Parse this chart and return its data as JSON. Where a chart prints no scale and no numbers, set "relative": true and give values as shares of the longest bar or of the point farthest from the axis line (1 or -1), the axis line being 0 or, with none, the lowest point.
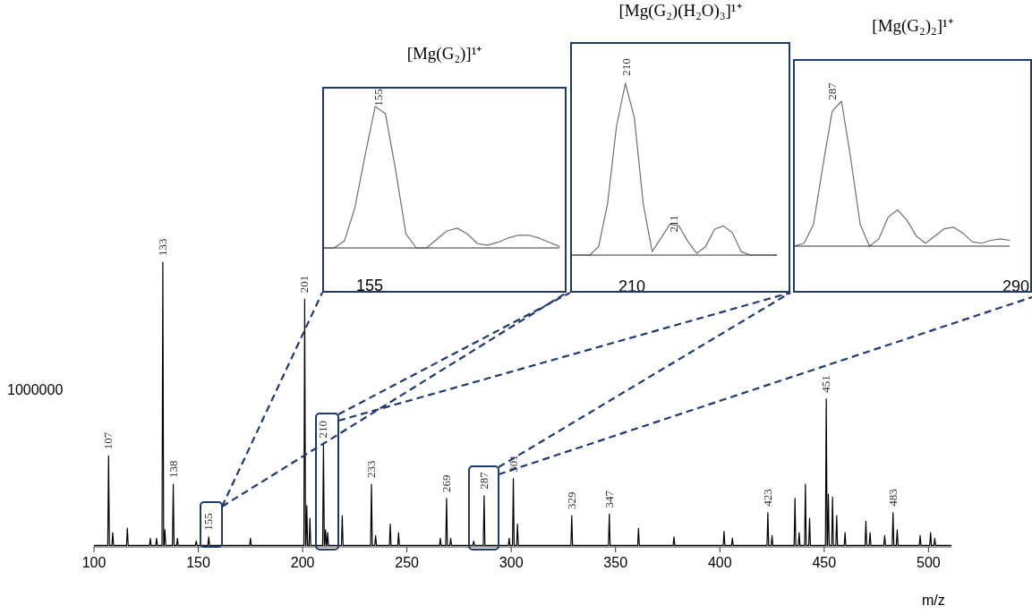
{
  "chart_data": [
    {
      "type": "line",
      "xlabel": "m/z",
      "relative": true,
      "xlim": [
        100,
        511
      ],
      "xticks": [
        100,
        150,
        200,
        250,
        300,
        350,
        400,
        450,
        500
      ],
      "x": [
        100,
        106.6,
        107,
        107.4,
        108.6,
        109,
        109.4,
        115.6,
        116,
        116.4,
        126.6,
        127,
        127.4,
        129.6,
        130,
        130.4,
        132.6,
        133,
        133.4,
        133.6,
        134,
        134.4,
        137.6,
        138,
        138.4,
        139.6,
        140,
        140.4,
        148.6,
        149,
        149.4,
        154.6,
        155,
        155.4,
        174.6,
        175,
        175.4,
        200.6,
        201,
        201.4,
        201.6,
        202,
        202.4,
        203.1,
        203.5,
        203.9,
        209.6,
        210,
        210.4,
        210.6,
        211,
        211.4,
        211.6,
        212,
        212.4,
        218.6,
        219,
        219.4,
        232.6,
        233,
        233.4,
        234.6,
        235,
        235.4,
        241.6,
        242,
        242.4,
        245.6,
        246,
        246.4,
        265.6,
        266,
        266.4,
        268.6,
        269,
        269.4,
        270.6,
        271,
        271.4,
        281.6,
        282,
        282.4,
        286.6,
        287,
        287.4,
        298.6,
        299,
        299.4,
        300.6,
        301,
        301.4,
        302.6,
        303,
        303.4,
        328.6,
        329,
        329.4,
        346.6,
        347,
        347.4,
        360.6,
        361,
        361.4,
        377.6,
        378,
        378.4,
        401.6,
        402,
        402.4,
        405.6,
        406,
        406.4,
        422.6,
        423,
        423.4,
        424.6,
        425,
        425.4,
        435.6,
        436,
        436.4,
        437.6,
        438,
        438.4,
        440.6,
        441,
        441.4,
        442.6,
        443,
        443.4,
        450.6,
        451,
        451.4,
        451.6,
        452,
        452.4,
        453.6,
        454,
        454.4,
        455.6,
        456,
        456.4,
        459.6,
        460,
        460.4,
        469.6,
        470,
        470.4,
        471.6,
        472,
        472.4,
        478.6,
        479,
        479.4,
        482.6,
        483,
        483.4,
        484.6,
        485,
        485.4,
        495.6,
        496,
        496.4,
        500.6,
        501,
        501.4,
        502.6,
        503,
        503.4,
        511
      ],
      "series": [
        {
          "color": "#000000",
          "values": [
            0.005,
            0.005,
            0.32,
            0.005,
            0.005,
            0.05,
            0.005,
            0.005,
            0.066,
            0.005,
            0.005,
            0.03,
            0.005,
            0.005,
            0.03,
            0.005,
            0.005,
            1,
            0.005,
            0.005,
            0.06,
            0.005,
            0.005,
            0.22,
            0.005,
            0.005,
            0.03,
            0.005,
            0.005,
            0.02,
            0.005,
            0.005,
            0.035,
            0.005,
            0.005,
            0.03,
            0.005,
            0.005,
            0.87,
            0.005,
            0.005,
            0.145,
            0.005,
            0.005,
            0.1,
            0.005,
            0.005,
            0.36,
            0.005,
            0.005,
            0.06,
            0.005,
            0.005,
            0.05,
            0.005,
            0.005,
            0.11,
            0.005,
            0.005,
            0.22,
            0.005,
            0.005,
            0.04,
            0.005,
            0.005,
            0.08,
            0.005,
            0.005,
            0.05,
            0.005,
            0.005,
            0.03,
            0.005,
            0.005,
            0.17,
            0.005,
            0.005,
            0.03,
            0.005,
            0.005,
            0.02,
            0.005,
            0.005,
            0.18,
            0.005,
            0.005,
            0.03,
            0.005,
            0.005,
            0.24,
            0.005,
            0.005,
            0.08,
            0.005,
            0.005,
            0.11,
            0.005,
            0.005,
            0.115,
            0.005,
            0.005,
            0.065,
            0.005,
            0.005,
            0.035,
            0.005,
            0.005,
            0.055,
            0.005,
            0.005,
            0.03,
            0.005,
            0.005,
            0.12,
            0.005,
            0.005,
            0.04,
            0.005,
            0.005,
            0.17,
            0.005,
            0.005,
            0.05,
            0.005,
            0.005,
            0.22,
            0.005,
            0.005,
            0.1,
            0.005,
            0.005,
            0.52,
            0.005,
            0.005,
            0.185,
            0.005,
            0.005,
            0.175,
            0.005,
            0.005,
            0.11,
            0.005,
            0.005,
            0.05,
            0.005,
            0.005,
            0.09,
            0.005,
            0.005,
            0.05,
            0.005,
            0.005,
            0.04,
            0.005,
            0.005,
            0.12,
            0.005,
            0.005,
            0.06,
            0.005,
            0.005,
            0.04,
            0.005,
            0.005,
            0.05,
            0.005,
            0.005,
            0.03,
            0.005,
            0.005
          ]
        }
      ],
      "annotations": [
        "1000000",
        {
          "text": "107",
          "x": 107,
          "y": 0.32
        },
        {
          "text": "133",
          "x": 133,
          "y": 1
        },
        {
          "text": "138",
          "x": 138,
          "y": 0.22
        },
        {
          "text": "155",
          "x": 155,
          "y": 0.035
        },
        {
          "text": "201",
          "x": 201,
          "y": 0.87
        },
        {
          "text": "210",
          "x": 210,
          "y": 0.36
        },
        {
          "text": "233",
          "x": 233,
          "y": 0.22
        },
        {
          "text": "269",
          "x": 269,
          "y": 0.17
        },
        {
          "text": "287",
          "x": 287,
          "y": 0.18
        },
        {
          "text": "301",
          "x": 301,
          "y": 0.24
        },
        {
          "text": "329",
          "x": 329,
          "y": 0.11
        },
        {
          "text": "347",
          "x": 347,
          "y": 0.115
        },
        {
          "text": "423",
          "x": 423,
          "y": 0.12
        },
        {
          "text": "451",
          "x": 451,
          "y": 0.52
        },
        {
          "text": "483",
          "x": 483,
          "y": 0.12
        }
      ]
    },
    {
      "type": "line",
      "title": "[Mg(G₂)]¹⁺",
      "relative": true,
      "categories": [
        null,
        null,
        null,
        null,
        null,
        null,
        null,
        null,
        null,
        null,
        null,
        null,
        null,
        null,
        null,
        null,
        null,
        null,
        null,
        null,
        null,
        null,
        null,
        null
      ],
      "series": [
        {
          "color": "#707070",
          "values": [
            0,
            0,
            0.05,
            0.28,
            0.65,
            1,
            0.95,
            0.55,
            0.1,
            0,
            0,
            0.06,
            0.12,
            0.14,
            0.1,
            0.03,
            0.02,
            0.04,
            0.07,
            0.09,
            0.09,
            0.07,
            0.04,
            0.01
          ]
        }
      ],
      "annotations": [
        "155",
        "155"
      ]
    },
    {
      "type": "line",
      "title": "[Mg(G₂)(H₂O)₃]¹⁺",
      "relative": true,
      "categories": [
        null,
        null,
        null,
        null,
        null,
        null,
        null,
        null,
        null,
        null,
        null,
        null,
        null,
        null,
        null,
        null,
        null,
        null,
        null,
        null,
        null,
        null,
        null,
        null
      ],
      "series": [
        {
          "color": "#707070",
          "values": [
            0,
            0,
            0,
            0.05,
            0.3,
            0.75,
            1,
            0.8,
            0.3,
            0.02,
            0.1,
            0.18,
            0.17,
            0.08,
            0.01,
            0.05,
            0.15,
            0.17,
            0.13,
            0.02,
            0,
            0,
            0,
            0
          ]
        }
      ],
      "annotations": [
        "210",
        "211",
        "210"
      ]
    },
    {
      "type": "line",
      "title": "[Mg(G₂)₂]¹⁺",
      "relative": true,
      "categories": [
        null,
        null,
        null,
        null,
        null,
        null,
        null,
        null,
        null,
        null,
        null,
        null,
        null,
        null,
        null,
        null,
        null,
        null,
        null,
        null,
        null,
        null,
        null,
        null
      ],
      "series": [
        {
          "color": "#707070",
          "values": [
            0,
            0.02,
            0.15,
            0.55,
            0.93,
            1,
            0.6,
            0.15,
            0,
            0.05,
            0.2,
            0.25,
            0.18,
            0.07,
            0.02,
            0.07,
            0.12,
            0.13,
            0.09,
            0.03,
            0.02,
            0.04,
            0.05,
            0.04
          ]
        }
      ],
      "annotations": [
        "287",
        "290"
      ]
    }
  ]
}
